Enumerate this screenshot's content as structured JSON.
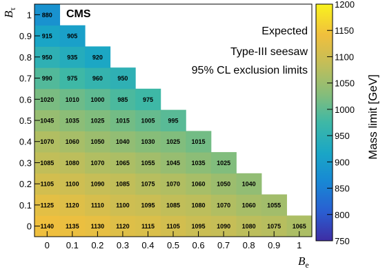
{
  "chart_data": {
    "type": "heatmap",
    "annotations": {
      "experiment": "CMS",
      "line1": "Expected",
      "line2": "Type-III seesaw",
      "line3": "95% CL exclusion limits"
    },
    "xlabel": {
      "main": "B",
      "sub": "e"
    },
    "ylabel": {
      "main": "B",
      "sub": "τ"
    },
    "zlabel": "Mass limit [GeV]",
    "x_ticks": [
      "0",
      "0.1",
      "0.2",
      "0.3",
      "0.4",
      "0.5",
      "0.6",
      "0.7",
      "0.8",
      "0.9",
      "1"
    ],
    "y_ticks": [
      "0",
      "0.1",
      "0.2",
      "0.3",
      "0.4",
      "0.5",
      "0.6",
      "0.7",
      "0.8",
      "0.9",
      "1"
    ],
    "z_ticks": [
      "750",
      "800",
      "850",
      "900",
      "950",
      "1000",
      "1050",
      "1100",
      "1150",
      "1200"
    ],
    "zlim": [
      750,
      1200
    ],
    "xlim": [
      0,
      1
    ],
    "ylim": [
      0,
      1
    ],
    "rows": [
      {
        "b_tau": 0.0,
        "values": [
          1140,
          1135,
          1130,
          1120,
          1115,
          1105,
          1095,
          1090,
          1080,
          1075,
          1065
        ]
      },
      {
        "b_tau": 0.1,
        "values": [
          1125,
          1120,
          1110,
          1100,
          1095,
          1085,
          1080,
          1070,
          1060,
          1055
        ]
      },
      {
        "b_tau": 0.2,
        "values": [
          1105,
          1100,
          1090,
          1085,
          1075,
          1070,
          1060,
          1050,
          1040
        ]
      },
      {
        "b_tau": 0.3,
        "values": [
          1085,
          1080,
          1070,
          1065,
          1055,
          1045,
          1035,
          1025
        ]
      },
      {
        "b_tau": 0.4,
        "values": [
          1070,
          1060,
          1050,
          1040,
          1030,
          1025,
          1015
        ]
      },
      {
        "b_tau": 0.5,
        "values": [
          1045,
          1035,
          1025,
          1015,
          1005,
          995
        ]
      },
      {
        "b_tau": 0.6,
        "values": [
          1020,
          1010,
          1000,
          985,
          975
        ]
      },
      {
        "b_tau": 0.7,
        "values": [
          990,
          975,
          960,
          950
        ]
      },
      {
        "b_tau": 0.8,
        "values": [
          950,
          935,
          920
        ]
      },
      {
        "b_tau": 0.9,
        "values": [
          915,
          905
        ]
      },
      {
        "b_tau": 1.0,
        "values": [
          880
        ]
      }
    ]
  }
}
